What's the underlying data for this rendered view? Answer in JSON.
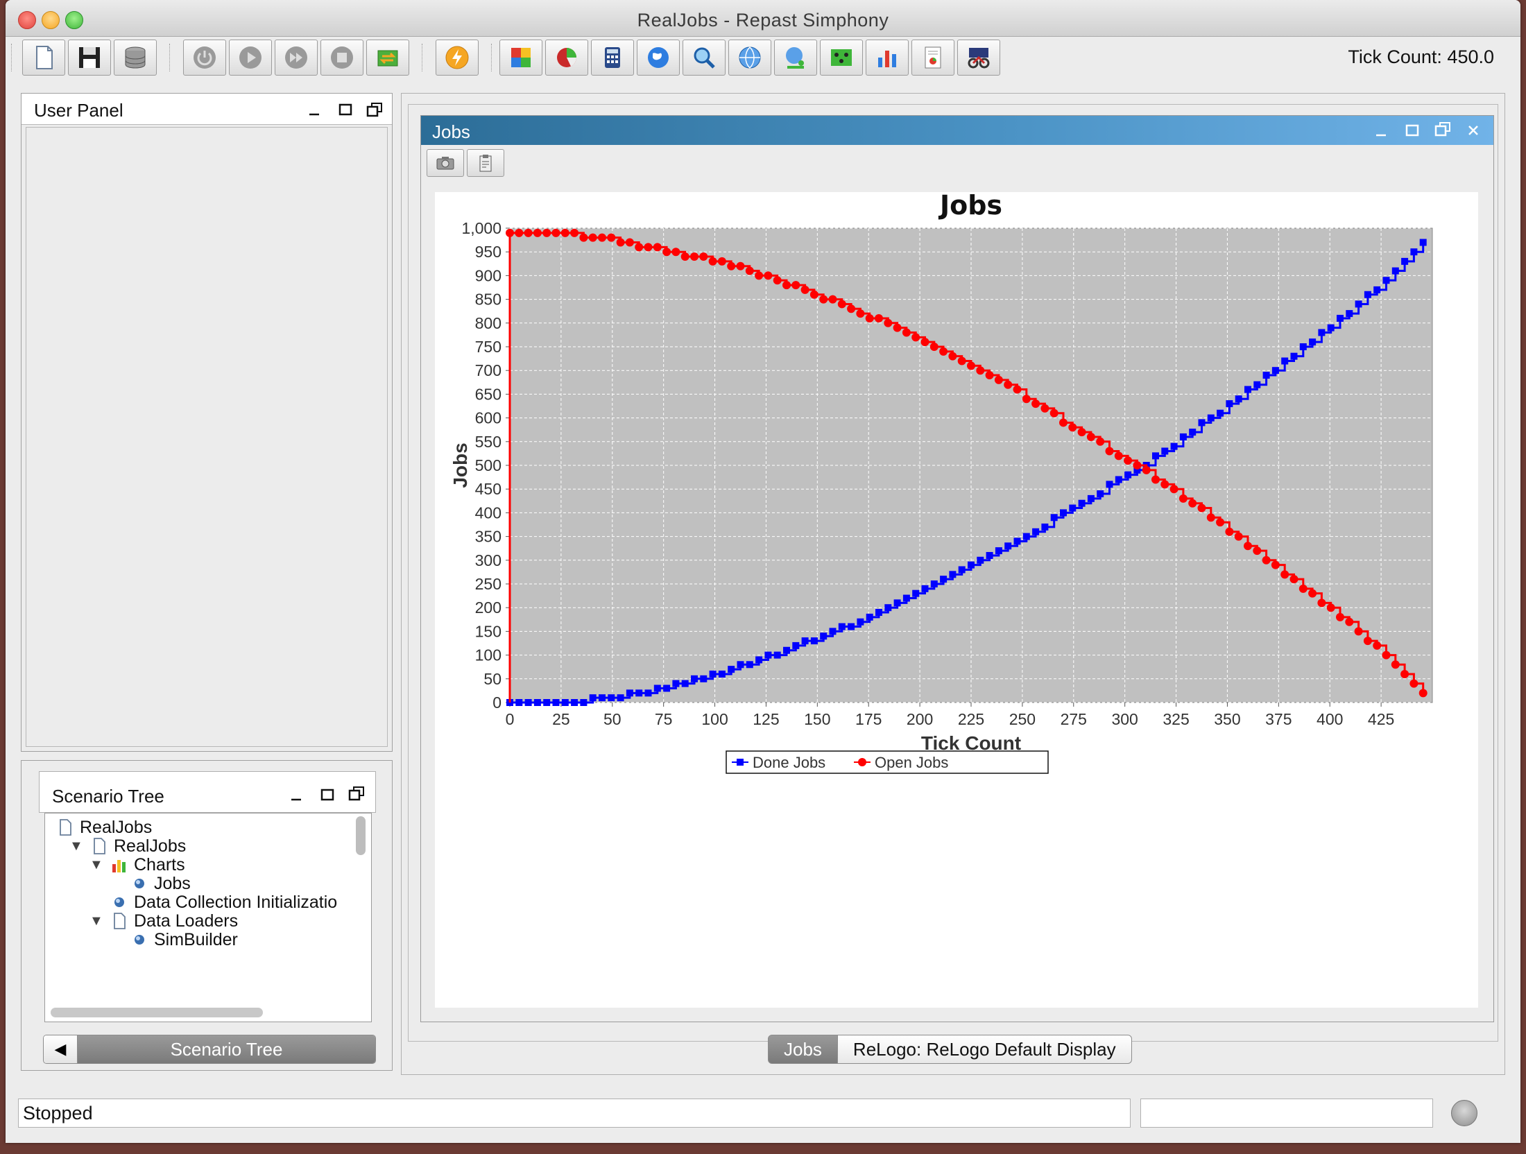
{
  "window": {
    "title": "RealJobs - Repast Simphony"
  },
  "toolbar": {
    "buttons": [
      {
        "name": "new-scenario",
        "icon": "document-icon"
      },
      {
        "name": "save-scenario",
        "icon": "floppy-disk-icon"
      },
      {
        "name": "database",
        "icon": "database-icon"
      },
      {
        "name": "initialize-run",
        "icon": "power-icon"
      },
      {
        "name": "start-run",
        "icon": "play-icon"
      },
      {
        "name": "step-run",
        "icon": "fast-forward-icon"
      },
      {
        "name": "stop-run",
        "icon": "stop-icon"
      },
      {
        "name": "reset-run",
        "icon": "reset-icon"
      },
      {
        "name": "batch-run",
        "icon": "lightning-icon"
      },
      {
        "name": "spreadsheet",
        "icon": "spreadsheet-icon"
      },
      {
        "name": "pie-chart",
        "icon": "pie-chart-icon"
      },
      {
        "name": "calculator",
        "icon": "calculator-icon"
      },
      {
        "name": "globe",
        "icon": "globe-icon"
      },
      {
        "name": "search",
        "icon": "magnifier-icon"
      },
      {
        "name": "network",
        "icon": "network-icon"
      },
      {
        "name": "globe-person",
        "icon": "globe-person-icon"
      },
      {
        "name": "grid",
        "icon": "grid-icon"
      },
      {
        "name": "bar-chart",
        "icon": "bar-chart-icon"
      },
      {
        "name": "report",
        "icon": "report-icon"
      },
      {
        "name": "bike",
        "icon": "bike-icon"
      }
    ],
    "tick_count": "Tick Count: 450.0"
  },
  "user_panel": {
    "title": "User Panel"
  },
  "scenario_tree": {
    "title": "Scenario Tree",
    "items": [
      {
        "label": "RealJobs",
        "level": 0,
        "icon": "document-icon",
        "disclosure": ""
      },
      {
        "label": "RealJobs",
        "level": 1,
        "icon": "document-icon",
        "disclosure": "▼"
      },
      {
        "label": "Charts",
        "level": 2,
        "icon": "charts-icon",
        "disclosure": "▼"
      },
      {
        "label": "Jobs",
        "level": 3,
        "icon": "bullet-icon",
        "disclosure": ""
      },
      {
        "label": "Data Collection Initializatio",
        "level": 2,
        "icon": "bullet-icon",
        "disclosure": ""
      },
      {
        "label": "Data Loaders",
        "level": 2,
        "icon": "document-icon",
        "disclosure": "▼"
      },
      {
        "label": "SimBuilder",
        "level": 3,
        "icon": "bullet-icon",
        "disclosure": ""
      }
    ],
    "bottom_tab": "Scenario Tree"
  },
  "jobs_frame": {
    "title": "Jobs"
  },
  "display_tabs": [
    "Jobs",
    "ReLogo: ReLogo Default Display"
  ],
  "status": {
    "text": "Stopped",
    "secondary": ""
  },
  "colors": {
    "done": "#0000ff",
    "open": "#ff0000",
    "plot_bg": "#c0c0c0"
  },
  "chart_data": {
    "type": "line",
    "title": "Jobs",
    "xlabel": "Tick Count",
    "ylabel": "Jobs",
    "xlim": [
      0,
      450
    ],
    "ylim": [
      0,
      1000
    ],
    "xticks": [
      "0",
      "25",
      "50",
      "75",
      "100",
      "125",
      "150",
      "175",
      "200",
      "225",
      "250",
      "275",
      "300",
      "325",
      "350",
      "375",
      "400",
      "425"
    ],
    "yticks": [
      "0",
      "50",
      "100",
      "150",
      "200",
      "250",
      "300",
      "350",
      "400",
      "450",
      "500",
      "550",
      "600",
      "650",
      "700",
      "750",
      "800",
      "850",
      "900",
      "950",
      "1,000"
    ],
    "grid": true,
    "legend_position": "bottom",
    "x": [
      0,
      25,
      50,
      75,
      100,
      125,
      150,
      175,
      200,
      225,
      250,
      275,
      300,
      325,
      350,
      375,
      400,
      425,
      448
    ],
    "series": [
      {
        "name": "Done Jobs",
        "color": "#0000ff",
        "marker": "square",
        "values": [
          0,
          0,
          10,
          30,
          60,
          95,
          135,
          180,
          230,
          285,
          345,
          410,
          475,
          545,
          625,
          705,
          790,
          880,
          985
        ]
      },
      {
        "name": "Open Jobs",
        "color": "#ff0000",
        "marker": "circle",
        "values": [
          990,
          990,
          975,
          955,
          930,
          900,
          860,
          815,
          765,
          710,
          650,
          580,
          515,
          445,
          365,
          285,
          200,
          110,
          10
        ]
      }
    ]
  }
}
